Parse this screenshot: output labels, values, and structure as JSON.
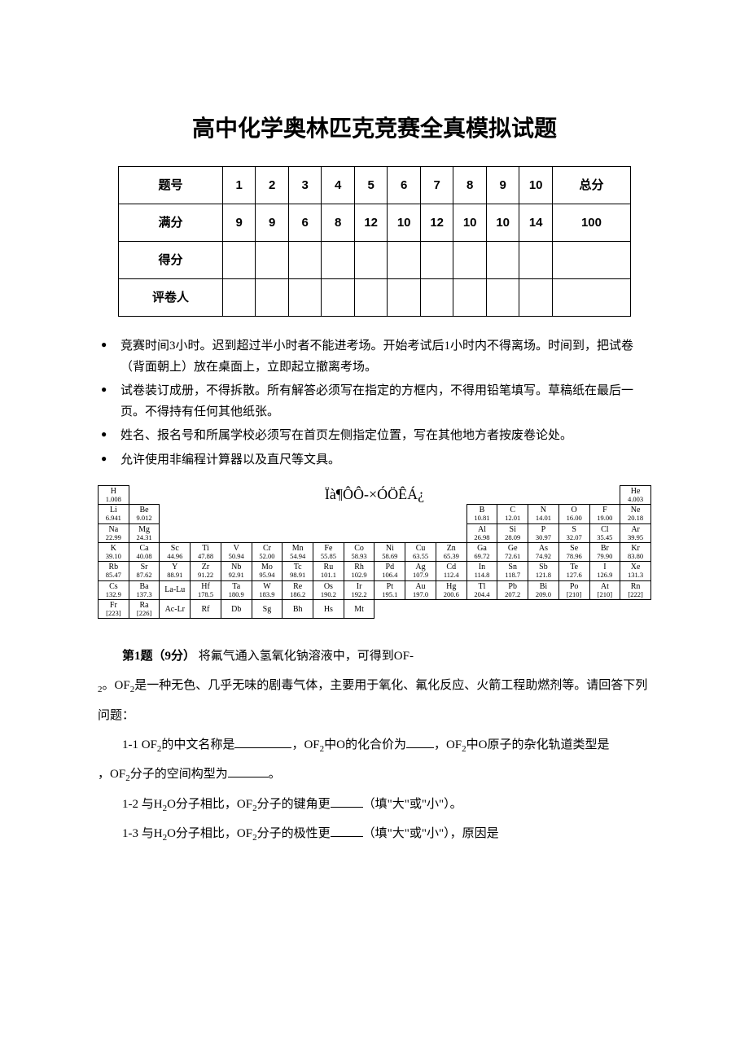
{
  "title": "高中化学奥林匹克竞赛全真模拟试题",
  "score_table": {
    "header_label": "题号",
    "header_total": "总分",
    "cols": [
      "1",
      "2",
      "3",
      "4",
      "5",
      "6",
      "7",
      "8",
      "9",
      "10"
    ],
    "rows": [
      {
        "label": "满分",
        "values": [
          "9",
          "9",
          "6",
          "8",
          "12",
          "10",
          "12",
          "10",
          "10",
          "14"
        ],
        "total": "100"
      },
      {
        "label": "得分",
        "values": [
          "",
          "",
          "",
          "",
          "",
          "",
          "",
          "",
          "",
          ""
        ],
        "total": ""
      },
      {
        "label": "评卷人",
        "values": [
          "",
          "",
          "",
          "",
          "",
          "",
          "",
          "",
          "",
          ""
        ],
        "total": ""
      }
    ]
  },
  "rules": [
    "竞赛时间3小时。迟到超过半小时者不能进考场。开始考试后1小时内不得离场。时间到，把试卷（背面朝上）放在桌面上，立即起立撤离考场。",
    "试卷装订成册，不得拆散。所有解答必须写在指定的方框内，不得用铅笔填写。草稿纸在最后一页。不得持有任何其他纸张。",
    "姓名、报名号和所属学校必须写在首页左侧指定位置，写在其他地方者按废卷论处。",
    "允许使用非编程计算器以及直尺等文具。"
  ],
  "periodic_title": "Ïà¶ÔÔ-×ÓÖÊÁ¿",
  "periodic": [
    [
      {
        "s": "H",
        "m": "1.008"
      },
      null,
      null,
      null,
      null,
      null,
      null,
      null,
      null,
      null,
      null,
      null,
      null,
      null,
      null,
      null,
      null,
      {
        "s": "He",
        "m": "4.003"
      }
    ],
    [
      {
        "s": "Li",
        "m": "6.941"
      },
      {
        "s": "Be",
        "m": "9.012"
      },
      null,
      null,
      null,
      null,
      null,
      null,
      null,
      null,
      null,
      null,
      {
        "s": "B",
        "m": "10.81"
      },
      {
        "s": "C",
        "m": "12.01"
      },
      {
        "s": "N",
        "m": "14.01"
      },
      {
        "s": "O",
        "m": "16.00"
      },
      {
        "s": "F",
        "m": "19.00"
      },
      {
        "s": "Ne",
        "m": "20.18"
      }
    ],
    [
      {
        "s": "Na",
        "m": "22.99"
      },
      {
        "s": "Mg",
        "m": "24.31"
      },
      null,
      null,
      null,
      null,
      null,
      null,
      null,
      null,
      null,
      null,
      {
        "s": "Al",
        "m": "26.98"
      },
      {
        "s": "Si",
        "m": "28.09"
      },
      {
        "s": "P",
        "m": "30.97"
      },
      {
        "s": "S",
        "m": "32.07"
      },
      {
        "s": "Cl",
        "m": "35.45"
      },
      {
        "s": "Ar",
        "m": "39.95"
      }
    ],
    [
      {
        "s": "K",
        "m": "39.10"
      },
      {
        "s": "Ca",
        "m": "40.08"
      },
      {
        "s": "Sc",
        "m": "44.96"
      },
      {
        "s": "Ti",
        "m": "47.88"
      },
      {
        "s": "V",
        "m": "50.94"
      },
      {
        "s": "Cr",
        "m": "52.00"
      },
      {
        "s": "Mn",
        "m": "54.94"
      },
      {
        "s": "Fe",
        "m": "55.85"
      },
      {
        "s": "Co",
        "m": "58.93"
      },
      {
        "s": "Ni",
        "m": "58.69"
      },
      {
        "s": "Cu",
        "m": "63.55"
      },
      {
        "s": "Zn",
        "m": "65.39"
      },
      {
        "s": "Ga",
        "m": "69.72"
      },
      {
        "s": "Ge",
        "m": "72.61"
      },
      {
        "s": "As",
        "m": "74.92"
      },
      {
        "s": "Se",
        "m": "78.96"
      },
      {
        "s": "Br",
        "m": "79.90"
      },
      {
        "s": "Kr",
        "m": "83.80"
      }
    ],
    [
      {
        "s": "Rb",
        "m": "85.47"
      },
      {
        "s": "Sr",
        "m": "87.62"
      },
      {
        "s": "Y",
        "m": "88.91"
      },
      {
        "s": "Zr",
        "m": "91.22"
      },
      {
        "s": "Nb",
        "m": "92.91"
      },
      {
        "s": "Mo",
        "m": "95.94"
      },
      {
        "s": "Tc",
        "m": "98.91"
      },
      {
        "s": "Ru",
        "m": "101.1"
      },
      {
        "s": "Rh",
        "m": "102.9"
      },
      {
        "s": "Pd",
        "m": "106.4"
      },
      {
        "s": "Ag",
        "m": "107.9"
      },
      {
        "s": "Cd",
        "m": "112.4"
      },
      {
        "s": "In",
        "m": "114.8"
      },
      {
        "s": "Sn",
        "m": "118.7"
      },
      {
        "s": "Sb",
        "m": "121.8"
      },
      {
        "s": "Te",
        "m": "127.6"
      },
      {
        "s": "I",
        "m": "126.9"
      },
      {
        "s": "Xe",
        "m": "131.3"
      }
    ],
    [
      {
        "s": "Cs",
        "m": "132.9"
      },
      {
        "s": "Ba",
        "m": "137.3"
      },
      {
        "s": "La-Lu",
        "m": ""
      },
      {
        "s": "Hf",
        "m": "178.5"
      },
      {
        "s": "Ta",
        "m": "180.9"
      },
      {
        "s": "W",
        "m": "183.9"
      },
      {
        "s": "Re",
        "m": "186.2"
      },
      {
        "s": "Os",
        "m": "190.2"
      },
      {
        "s": "Ir",
        "m": "192.2"
      },
      {
        "s": "Pt",
        "m": "195.1"
      },
      {
        "s": "Au",
        "m": "197.0"
      },
      {
        "s": "Hg",
        "m": "200.6"
      },
      {
        "s": "Tl",
        "m": "204.4"
      },
      {
        "s": "Pb",
        "m": "207.2"
      },
      {
        "s": "Bi",
        "m": "209.0"
      },
      {
        "s": "Po",
        "m": "[210]"
      },
      {
        "s": "At",
        "m": "[210]"
      },
      {
        "s": "Rn",
        "m": "[222]"
      }
    ],
    [
      {
        "s": "Fr",
        "m": "[223]"
      },
      {
        "s": "Ra",
        "m": "[226]"
      },
      {
        "s": "Ac-Lr",
        "m": ""
      },
      {
        "s": "Rf",
        "m": ""
      },
      {
        "s": "Db",
        "m": ""
      },
      {
        "s": "Sg",
        "m": ""
      },
      {
        "s": "Bh",
        "m": ""
      },
      {
        "s": "Hs",
        "m": ""
      },
      {
        "s": "Mt",
        "m": ""
      },
      null,
      null,
      null,
      null,
      null,
      null,
      null,
      null,
      null
    ]
  ],
  "q1": {
    "head": "第1题（9分）",
    "intro1": "将氟气通入氢氧化钠溶液中，可得到OF-",
    "intro2": "。OF",
    "intro3": "是一种无色、几乎无味的剧毒气体，主要用于氧化、氟化反应、火箭工程助燃剂等。请回答下列问题：",
    "p11a": "1-1  OF",
    "p11b": "的中文名称是",
    "p11c": "，OF",
    "p11d": "中O的化合价为",
    "p11e": "，OF",
    "p11f": "中O原子的杂化轨道类型是",
    "p11g": "，OF",
    "p11h": "分子的空间构型为",
    "p11i": "。",
    "p12a": "1-2  与H",
    "p12b": "O分子相比，OF",
    "p12c": "分子的键角更",
    "p12d": "（填\"大\"或\"小\"）。",
    "p13a": "1-3  与H",
    "p13b": "O分子相比，OF",
    "p13c": "分子的极性更",
    "p13d": "（填\"大\"或\"小\"），原因是",
    "sub2": "2"
  },
  "colors": {
    "text": "#000000",
    "background": "#ffffff",
    "border": "#000000"
  },
  "fonts": {
    "heading": "SimHei",
    "body": "SimSun",
    "latin": "Times New Roman",
    "title_size_pt": 21,
    "body_size_pt": 11
  }
}
